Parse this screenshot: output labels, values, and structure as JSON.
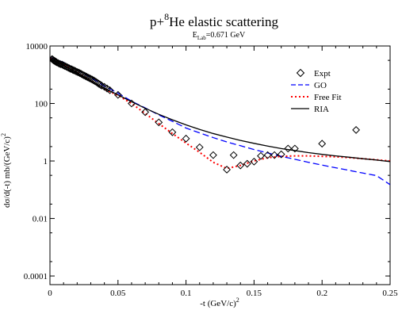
{
  "chart_data": {
    "type": "scatter",
    "title": {
      "prefix": "p+",
      "superscript": "8",
      "suffix": "He elastic scattering"
    },
    "subtitle": {
      "base": "E",
      "subscript": "Lab",
      "rest": "=0.671 GeV"
    },
    "xlabel": {
      "base": "-t (GeV/c)",
      "superscript": "2"
    },
    "ylabel": {
      "base": "dσ/d(-t)  mb/(GeV/c)",
      "superscript": "2"
    },
    "x_scale": "linear",
    "y_scale": "log",
    "xlim": [
      0,
      0.25
    ],
    "ylim": [
      5e-05,
      10000
    ],
    "x_ticks": [
      0,
      0.05,
      0.1,
      0.15,
      0.2,
      0.25
    ],
    "x_tick_labels": [
      "0",
      "0.05",
      "0.1",
      "0.15",
      "0.2",
      "0.25"
    ],
    "y_ticks": [
      0.0001,
      0.01,
      1,
      100,
      10000
    ],
    "y_tick_labels": [
      "0.0001",
      "0.01",
      "1",
      "100",
      "10000"
    ],
    "grid": false,
    "legend_position": "top-right",
    "legend": [
      {
        "name": "Expt",
        "marker": "open-diamond",
        "color": "#000000"
      },
      {
        "name": "GO",
        "line": "dashed",
        "color": "#0000ff"
      },
      {
        "name": "Free Fit",
        "line": "dotted",
        "color": "#ff0000"
      },
      {
        "name": "RIA",
        "line": "solid",
        "color": "#000000"
      }
    ],
    "series": [
      {
        "name": "Expt",
        "kind": "points",
        "x": [
          0.0015,
          0.002,
          0.0025,
          0.003,
          0.0035,
          0.004,
          0.0045,
          0.005,
          0.006,
          0.007,
          0.008,
          0.009,
          0.01,
          0.011,
          0.012,
          0.013,
          0.014,
          0.015,
          0.016,
          0.017,
          0.018,
          0.019,
          0.02,
          0.021,
          0.022,
          0.023,
          0.024,
          0.025,
          0.026,
          0.027,
          0.028,
          0.029,
          0.03,
          0.031,
          0.032,
          0.033,
          0.034,
          0.035,
          0.036,
          0.037,
          0.038,
          0.04,
          0.042,
          0.044,
          0.05,
          0.06,
          0.07,
          0.08,
          0.09,
          0.1,
          0.11,
          0.12,
          0.13,
          0.135,
          0.14,
          0.145,
          0.15,
          0.155,
          0.16,
          0.165,
          0.17,
          0.175,
          0.18,
          0.2,
          0.225
        ],
        "y": [
          3500,
          3400,
          3200,
          3100,
          3000,
          2900,
          2800,
          2700,
          2550,
          2400,
          2300,
          2250,
          2100,
          2000,
          1900,
          1800,
          1700,
          1600,
          1550,
          1450,
          1400,
          1320,
          1250,
          1200,
          1130,
          1070,
          1000,
          950,
          900,
          850,
          800,
          760,
          720,
          680,
          640,
          600,
          560,
          520,
          480,
          450,
          420,
          380,
          330,
          290,
          200,
          100,
          50,
          22,
          10,
          6,
          3,
          1.6,
          0.5,
          1.6,
          0.7,
          0.8,
          0.95,
          1.5,
          1.6,
          1.6,
          1.7,
          2.7,
          2.7,
          4.0,
          12
        ]
      },
      {
        "name": "GO",
        "kind": "line",
        "x": [
          0.0,
          0.01,
          0.02,
          0.03,
          0.04,
          0.05,
          0.06,
          0.07,
          0.08,
          0.09,
          0.1,
          0.11,
          0.12,
          0.13,
          0.14,
          0.15,
          0.16,
          0.17,
          0.18,
          0.19,
          0.2,
          0.21,
          0.22,
          0.23,
          0.24,
          0.25
        ],
        "y": [
          4000,
          2700,
          1500,
          800,
          400,
          230,
          120,
          70,
          40,
          24,
          14,
          9.5,
          6.5,
          4.6,
          3.4,
          2.5,
          1.9,
          1.45,
          1.15,
          0.9,
          0.72,
          0.58,
          0.47,
          0.38,
          0.31,
          0.15
        ]
      },
      {
        "name": "Free Fit",
        "kind": "line",
        "x": [
          0.0,
          0.01,
          0.02,
          0.03,
          0.04,
          0.05,
          0.06,
          0.07,
          0.08,
          0.09,
          0.1,
          0.11,
          0.12,
          0.13,
          0.14,
          0.15,
          0.16,
          0.17,
          0.18,
          0.19,
          0.2,
          0.21,
          0.22,
          0.23,
          0.24,
          0.25
        ],
        "y": [
          3800,
          2300,
          1200,
          620,
          320,
          190,
          100,
          45,
          20,
          9,
          4.2,
          2.0,
          0.9,
          0.55,
          0.7,
          1.0,
          1.3,
          1.45,
          1.5,
          1.5,
          1.45,
          1.4,
          1.3,
          1.2,
          1.1,
          1.0
        ]
      },
      {
        "name": "RIA",
        "kind": "line",
        "x": [
          0.0,
          0.01,
          0.02,
          0.03,
          0.04,
          0.05,
          0.06,
          0.07,
          0.08,
          0.09,
          0.1,
          0.11,
          0.12,
          0.13,
          0.14,
          0.15,
          0.16,
          0.17,
          0.18,
          0.19,
          0.2,
          0.21,
          0.22,
          0.23,
          0.24,
          0.25
        ],
        "y": [
          3600,
          2100,
          1150,
          620,
          340,
          200,
          115,
          68,
          42,
          27,
          18,
          12.5,
          9,
          6.8,
          5.2,
          4.1,
          3.3,
          2.7,
          2.3,
          1.95,
          1.7,
          1.5,
          1.35,
          1.2,
          1.08,
          0.95
        ]
      }
    ]
  }
}
